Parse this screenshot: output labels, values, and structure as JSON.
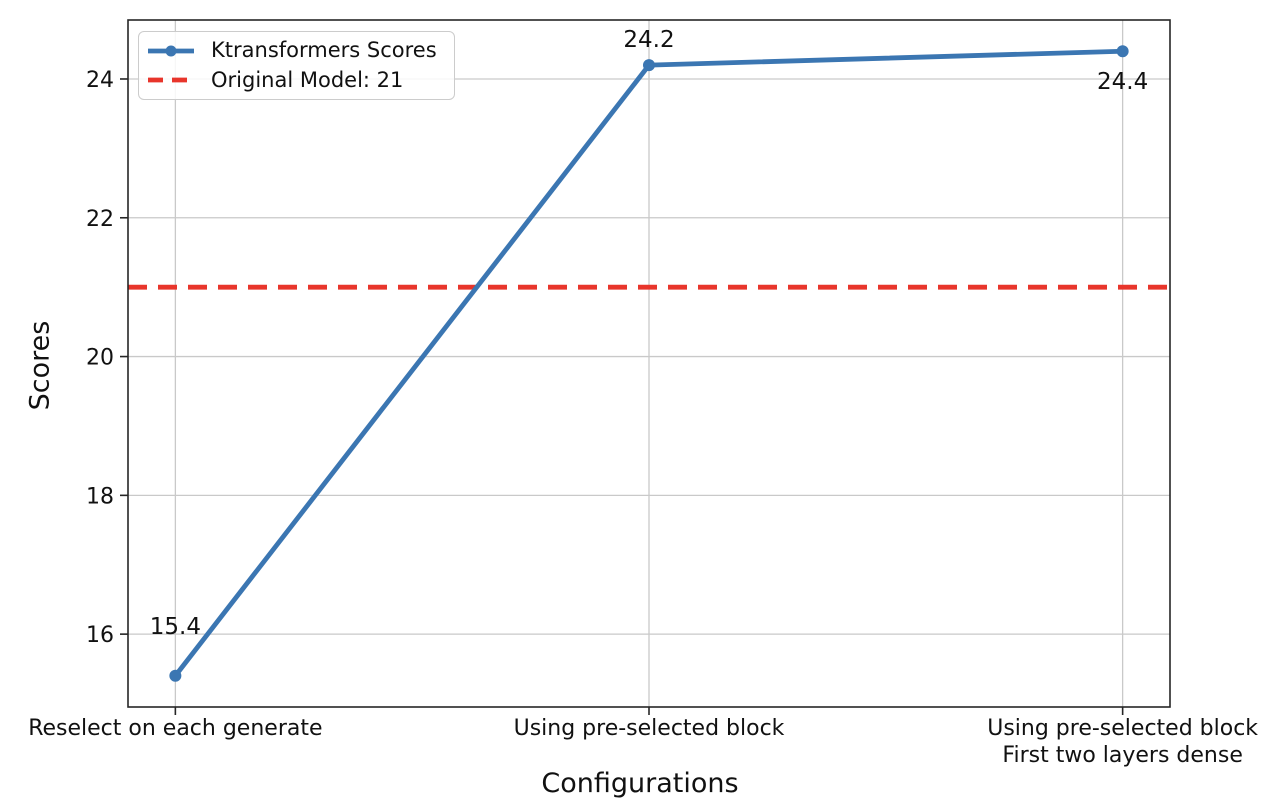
{
  "chart_data": {
    "type": "line",
    "title": "",
    "xlabel": "Configurations",
    "ylabel": "Scores",
    "categories": [
      "Reselect on each generate",
      "Using pre-selected block",
      "Using pre-selected block\nFirst two layers dense"
    ],
    "series": [
      {
        "name": "Ktransformers Scores",
        "values": [
          15.4,
          24.2,
          24.4
        ],
        "color": "#3b76b2",
        "marker": "circle",
        "line_style": "solid"
      }
    ],
    "reference_line": {
      "name": "Original Model: 21",
      "value": 21,
      "color": "#e8352b",
      "line_style": "dashed"
    },
    "point_labels": [
      "15.4",
      "24.2",
      "24.4"
    ],
    "yticks": [
      "16",
      "18",
      "20",
      "22",
      "24"
    ],
    "ylim": [
      14.95,
      24.85
    ],
    "grid": true,
    "legend_position": "upper-left",
    "legend": [
      {
        "label": "Ktransformers Scores",
        "swatch": "line-marker",
        "color": "#3b76b2"
      },
      {
        "label": "Original Model: 21",
        "swatch": "dashed-line",
        "color": "#e8352b"
      }
    ],
    "colors": {
      "grid": "#c9c9c9",
      "spine": "#262626",
      "text": "#111111",
      "background": "#ffffff"
    }
  }
}
